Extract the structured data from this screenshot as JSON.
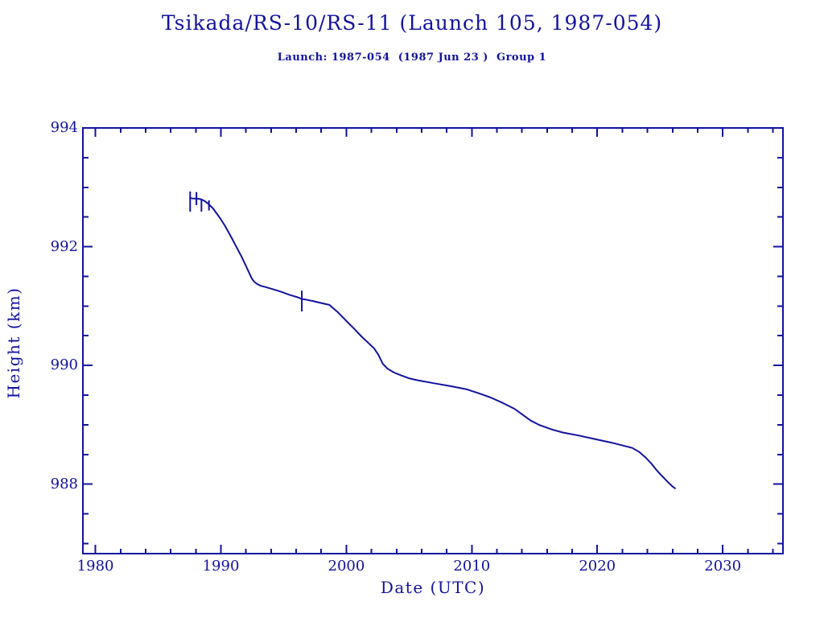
{
  "header": {
    "title": "Tsikada/RS-10/RS-11 (Launch 105, 1987-054)",
    "subtitle": "Launch: 1987-054  (1987 Jun 23 )  Group 1"
  },
  "colors": {
    "ink": "#12129e",
    "background": "#ffffff"
  },
  "chart_data": {
    "type": "line",
    "title": "Tsikada/RS-10/RS-11 (Launch 105, 1987-054)",
    "subtitle": "Launch: 1987-054  (1987 Jun 23 )  Group 1",
    "xlabel": "Date (UTC)",
    "ylabel": "Height (km)",
    "xlim": [
      1979.0,
      2034.8
    ],
    "ylim": [
      986.83,
      994.0
    ],
    "x_major_ticks": [
      1980,
      1990,
      2000,
      2010,
      2020,
      2030
    ],
    "x_minor_tick_step": 2,
    "y_major_ticks": [
      988,
      990,
      992,
      994
    ],
    "y_minor_tick_step": 0.5,
    "grid": false,
    "legend": null,
    "line_color": "#12129e",
    "series": [
      {
        "name": "orbit-height-km",
        "points": [
          [
            1987.55,
            992.82
          ],
          [
            1987.8,
            992.81
          ],
          [
            1988.1,
            992.81
          ],
          [
            1988.4,
            992.8
          ],
          [
            1988.7,
            992.77
          ],
          [
            1989.0,
            992.72
          ],
          [
            1989.35,
            992.65
          ],
          [
            1989.7,
            992.55
          ],
          [
            1990.0,
            992.46
          ],
          [
            1990.3,
            992.36
          ],
          [
            1990.65,
            992.23
          ],
          [
            1990.95,
            992.11
          ],
          [
            1991.3,
            991.97
          ],
          [
            1991.6,
            991.85
          ],
          [
            1991.9,
            991.72
          ],
          [
            1992.25,
            991.56
          ],
          [
            1992.45,
            991.47
          ],
          [
            1992.65,
            991.41
          ],
          [
            1992.9,
            991.37
          ],
          [
            1993.2,
            991.34
          ],
          [
            1993.55,
            991.32
          ],
          [
            1994.2,
            991.28
          ],
          [
            1994.8,
            991.24
          ],
          [
            1995.45,
            991.19
          ],
          [
            1996.1,
            991.15
          ],
          [
            1996.45,
            991.12
          ],
          [
            1996.75,
            991.11
          ],
          [
            1997.4,
            991.08
          ],
          [
            1998.0,
            991.05
          ],
          [
            1998.65,
            991.02
          ],
          [
            1999.3,
            990.9
          ],
          [
            2000.0,
            990.75
          ],
          [
            2000.65,
            990.61
          ],
          [
            2001.2,
            990.49
          ],
          [
            2001.9,
            990.35
          ],
          [
            2002.2,
            990.29
          ],
          [
            2002.55,
            990.18
          ],
          [
            2002.9,
            990.03
          ],
          [
            2003.25,
            989.95
          ],
          [
            2003.8,
            989.88
          ],
          [
            2004.4,
            989.83
          ],
          [
            2005.05,
            989.78
          ],
          [
            2005.7,
            989.75
          ],
          [
            2007.0,
            989.7
          ],
          [
            2008.3,
            989.65
          ],
          [
            2009.55,
            989.6
          ],
          [
            2010.85,
            989.51
          ],
          [
            2011.5,
            989.46
          ],
          [
            2012.45,
            989.37
          ],
          [
            2013.4,
            989.27
          ],
          [
            2014.05,
            989.17
          ],
          [
            2014.7,
            989.07
          ],
          [
            2015.35,
            989.0
          ],
          [
            2016.4,
            988.92
          ],
          [
            2017.25,
            988.87
          ],
          [
            2018.5,
            988.82
          ],
          [
            2019.8,
            988.76
          ],
          [
            2021.1,
            988.7
          ],
          [
            2022.05,
            988.65
          ],
          [
            2022.8,
            988.61
          ],
          [
            2023.35,
            988.54
          ],
          [
            2023.85,
            988.45
          ],
          [
            2024.3,
            988.35
          ],
          [
            2024.75,
            988.23
          ],
          [
            2025.15,
            988.14
          ],
          [
            2025.6,
            988.04
          ],
          [
            2026.0,
            987.96
          ],
          [
            2026.2,
            987.93
          ]
        ]
      }
    ],
    "glitch_spikes": [
      {
        "x": 1987.55,
        "y1": 992.59,
        "y2": 992.93
      },
      {
        "x": 1988.05,
        "y1": 992.7,
        "y2": 992.92
      },
      {
        "x": 1988.45,
        "y1": 992.59,
        "y2": 992.8
      },
      {
        "x": 1989.05,
        "y1": 992.61,
        "y2": 992.78
      },
      {
        "x": 1996.45,
        "y1": 990.91,
        "y2": 991.26
      }
    ]
  }
}
